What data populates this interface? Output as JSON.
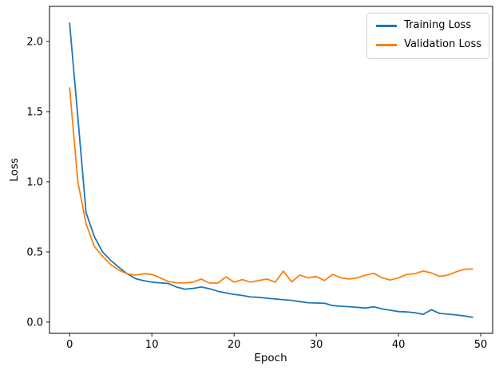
{
  "chart_data": {
    "type": "line",
    "title": "",
    "xlabel": "Epoch",
    "ylabel": "Loss",
    "grid": false,
    "legend_position": "upper right",
    "xlim": [
      -2.45,
      51.45
    ],
    "ylim": [
      -0.08,
      2.25
    ],
    "xticks": [
      "0",
      "10",
      "20",
      "30",
      "40",
      "50"
    ],
    "yticks": [
      "0.0",
      "0.5",
      "1.0",
      "1.5",
      "2.0"
    ],
    "x": [
      0,
      1,
      2,
      3,
      4,
      5,
      6,
      7,
      8,
      9,
      10,
      11,
      12,
      13,
      14,
      15,
      16,
      17,
      18,
      19,
      20,
      21,
      22,
      23,
      24,
      25,
      26,
      27,
      28,
      29,
      30,
      31,
      32,
      33,
      34,
      35,
      36,
      37,
      38,
      39,
      40,
      41,
      42,
      43,
      44,
      45,
      46,
      47,
      48,
      49
    ],
    "series": [
      {
        "name": "Training Loss",
        "color": "#1f77b4",
        "values": [
          2.13,
          1.46,
          0.78,
          0.61,
          0.5,
          0.44,
          0.39,
          0.345,
          0.31,
          0.295,
          0.285,
          0.28,
          0.275,
          0.25,
          0.235,
          0.24,
          0.25,
          0.238,
          0.22,
          0.208,
          0.198,
          0.19,
          0.179,
          0.177,
          0.17,
          0.165,
          0.159,
          0.155,
          0.146,
          0.138,
          0.136,
          0.134,
          0.118,
          0.113,
          0.11,
          0.105,
          0.1,
          0.11,
          0.094,
          0.085,
          0.075,
          0.073,
          0.067,
          0.055,
          0.088,
          0.062,
          0.057,
          0.051,
          0.044,
          0.034
        ]
      },
      {
        "name": "Validation Loss",
        "color": "#ff7f0e",
        "values": [
          1.67,
          1.0,
          0.7,
          0.54,
          0.47,
          0.41,
          0.37,
          0.345,
          0.335,
          0.345,
          0.34,
          0.316,
          0.29,
          0.28,
          0.28,
          0.285,
          0.307,
          0.278,
          0.278,
          0.322,
          0.285,
          0.303,
          0.285,
          0.296,
          0.307,
          0.285,
          0.364,
          0.287,
          0.335,
          0.316,
          0.325,
          0.296,
          0.34,
          0.316,
          0.307,
          0.316,
          0.335,
          0.348,
          0.316,
          0.3,
          0.315,
          0.34,
          0.345,
          0.364,
          0.35,
          0.326,
          0.335,
          0.358,
          0.377,
          0.378
        ]
      }
    ]
  }
}
